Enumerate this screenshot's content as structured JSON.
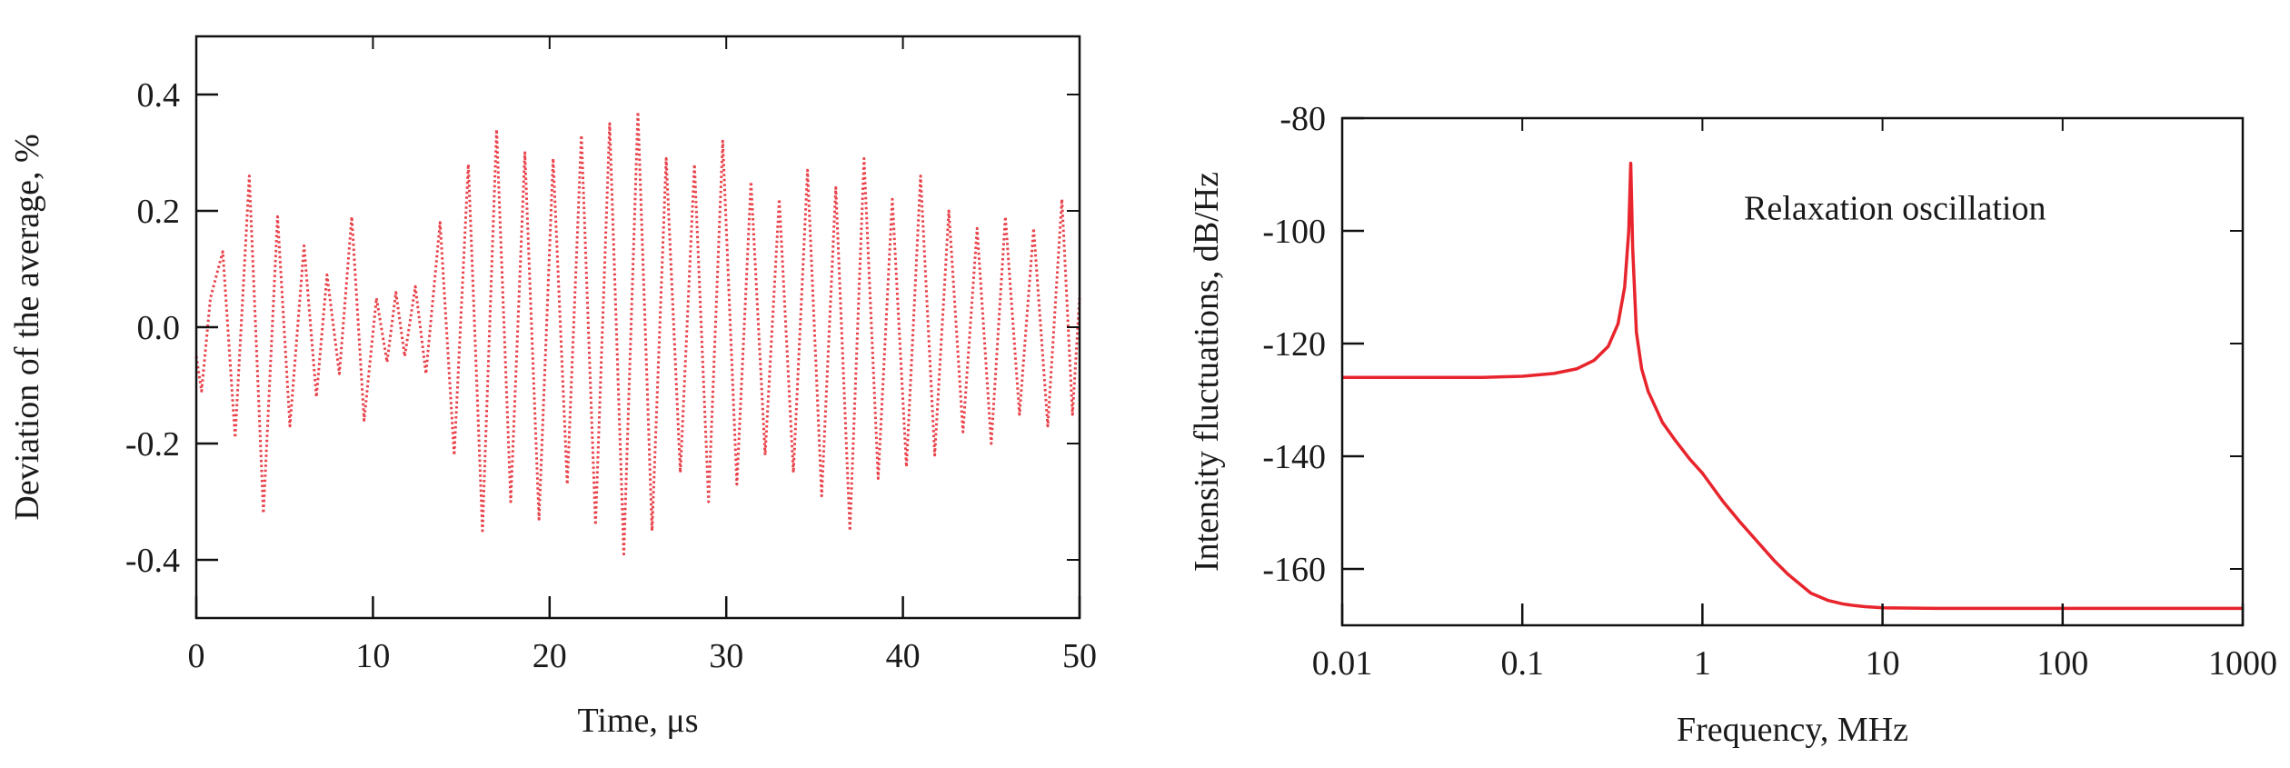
{
  "chart_data": [
    {
      "type": "line",
      "title": "",
      "xlabel": "Time, μs",
      "ylabel": "Deviation of the average, %",
      "xlim": [
        0,
        50
      ],
      "ylim": [
        -0.5,
        0.5
      ],
      "xticks": [
        0,
        10,
        20,
        30,
        40,
        50
      ],
      "xtick_labels": [
        "0",
        "10",
        "20",
        "30",
        "40",
        "50"
      ],
      "yticks": [
        -0.4,
        -0.2,
        0.0,
        0.2,
        0.4
      ],
      "ytick_labels": [
        "-0.4",
        "-0.2",
        "0.0",
        "0.2",
        "0.4"
      ],
      "grid": false,
      "line_style": "dotted",
      "line_color": "#e8424a",
      "series": [
        {
          "x": [
            0,
            0.3,
            0.8,
            1.5,
            2.2,
            3.0,
            3.8,
            4.6,
            5.3,
            6.1,
            6.8,
            7.4,
            8.1,
            8.8,
            9.5,
            10.2,
            10.8,
            11.3,
            11.8,
            12.4,
            13.0,
            13.8,
            14.6,
            15.4,
            16.2,
            17.0,
            17.8,
            18.6,
            19.4,
            20.2,
            21.0,
            21.8,
            22.6,
            23.4,
            24.2,
            25.0,
            25.8,
            26.6,
            27.4,
            28.2,
            29.0,
            29.8,
            30.6,
            31.4,
            32.2,
            33.0,
            33.8,
            34.6,
            35.4,
            36.2,
            37.0,
            37.8,
            38.6,
            39.4,
            40.2,
            41.0,
            41.8,
            42.6,
            43.4,
            44.2,
            45.0,
            45.8,
            46.6,
            47.4,
            48.2,
            49.0,
            49.6,
            50.0
          ],
          "y": [
            -0.05,
            -0.11,
            0.05,
            0.13,
            -0.19,
            0.26,
            -0.32,
            0.19,
            -0.17,
            0.14,
            -0.12,
            0.09,
            -0.08,
            0.19,
            -0.16,
            0.05,
            -0.06,
            0.06,
            -0.05,
            0.07,
            -0.08,
            0.18,
            -0.22,
            0.28,
            -0.35,
            0.34,
            -0.3,
            0.3,
            -0.33,
            0.29,
            -0.27,
            0.33,
            -0.34,
            0.35,
            -0.39,
            0.37,
            -0.35,
            0.29,
            -0.25,
            0.28,
            -0.3,
            0.32,
            -0.27,
            0.25,
            -0.22,
            0.22,
            -0.25,
            0.27,
            -0.29,
            0.24,
            -0.35,
            0.29,
            -0.26,
            0.22,
            -0.24,
            0.26,
            -0.22,
            0.2,
            -0.18,
            0.17,
            -0.2,
            0.19,
            -0.15,
            0.17,
            -0.17,
            0.22,
            -0.15,
            0.05
          ]
        }
      ]
    },
    {
      "type": "line",
      "title": "",
      "xlabel": "Frequency, MHz",
      "ylabel": "Intensity fluctuations, dB/Hz",
      "xscale": "log",
      "xlim": [
        0.01,
        1000
      ],
      "ylim": [
        -170,
        -80
      ],
      "xticks": [
        0.01,
        0.1,
        1,
        10,
        100,
        1000
      ],
      "xtick_labels": [
        "0.01",
        "0.1",
        "1",
        "10",
        "100",
        "1000"
      ],
      "yticks": [
        -160,
        -140,
        -120,
        -100,
        -80
      ],
      "ytick_labels": [
        "-160",
        "-140",
        "-120",
        "-100",
        "-80"
      ],
      "grid": false,
      "line_style": "solid",
      "line_color": "#e8242c",
      "annotation": {
        "text": "Relaxation oscillation",
        "x": 1.7,
        "y": -98
      },
      "series": [
        {
          "x": [
            0.01,
            0.03,
            0.06,
            0.1,
            0.15,
            0.2,
            0.25,
            0.3,
            0.34,
            0.37,
            0.39,
            0.4,
            0.41,
            0.43,
            0.46,
            0.5,
            0.6,
            0.7,
            0.85,
            1.0,
            1.3,
            1.6,
            2.0,
            2.5,
            3.0,
            4.0,
            5.0,
            6.0,
            7.0,
            8.0,
            9.0,
            10,
            20,
            50,
            100,
            300,
            1000
          ],
          "y": [
            -126,
            -126,
            -126,
            -125.8,
            -125.3,
            -124.5,
            -123.0,
            -120.5,
            -116.5,
            -110.0,
            -100.0,
            -88.0,
            -103.0,
            -118.0,
            -124.5,
            -128.5,
            -134.0,
            -137.0,
            -140.5,
            -143.0,
            -148.0,
            -151.5,
            -155.0,
            -158.5,
            -161.0,
            -164.3,
            -165.6,
            -166.2,
            -166.5,
            -166.7,
            -166.8,
            -166.9,
            -167,
            -167,
            -167,
            -167,
            -167
          ]
        }
      ]
    }
  ]
}
